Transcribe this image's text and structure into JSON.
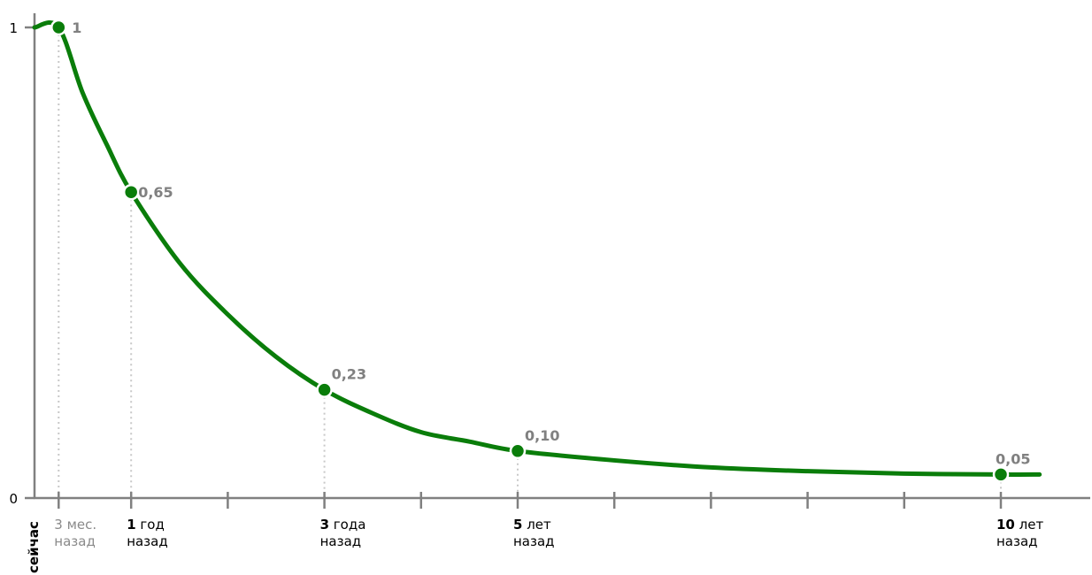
{
  "chart_data": {
    "type": "line",
    "title": "",
    "xlabel": "",
    "ylabel": "",
    "ylim": [
      0,
      1
    ],
    "y_ticks": [
      "0",
      "1"
    ],
    "x_unit": "years ago",
    "x_max": 12.2,
    "x_minor_ticks": [
      0.25,
      1,
      2,
      3,
      4,
      5,
      6,
      7,
      8,
      9,
      10
    ],
    "x_now_label": "сейчас",
    "x_tick_labels": [
      {
        "x": 0.25,
        "num": "",
        "unit": "3 мес.",
        "line2": "назад",
        "muted": true
      },
      {
        "x": 1,
        "num": "1",
        "unit": " год",
        "line2": "назад",
        "muted": false
      },
      {
        "x": 3,
        "num": "3",
        "unit": " года",
        "line2": "назад",
        "muted": false
      },
      {
        "x": 5,
        "num": "5",
        "unit": " лет",
        "line2": "назад",
        "muted": false
      },
      {
        "x": 10,
        "num": "10",
        "unit": " лет",
        "line2": "назад",
        "muted": false
      }
    ],
    "series": [
      {
        "color": "#0a7d0a",
        "points": [
          {
            "x": 0.25,
            "y": 1,
            "label": "1"
          },
          {
            "x": 1,
            "y": 0.65,
            "label": "0,65"
          },
          {
            "x": 3,
            "y": 0.23,
            "label": "0,23"
          },
          {
            "x": 5,
            "y": 0.1,
            "label": "0,10"
          },
          {
            "x": 10,
            "y": 0.05,
            "label": "0,05"
          }
        ],
        "curve": [
          [
            0.0,
            1.0
          ],
          [
            0.25,
            1.0
          ],
          [
            0.5,
            0.86
          ],
          [
            0.75,
            0.75
          ],
          [
            1.0,
            0.65
          ],
          [
            1.5,
            0.5
          ],
          [
            2.0,
            0.39
          ],
          [
            2.5,
            0.3
          ],
          [
            3.0,
            0.23
          ],
          [
            3.5,
            0.18
          ],
          [
            4.0,
            0.14
          ],
          [
            4.5,
            0.12
          ],
          [
            5.0,
            0.1
          ],
          [
            6.0,
            0.08
          ],
          [
            7.0,
            0.065
          ],
          [
            8.0,
            0.057
          ],
          [
            9.0,
            0.052
          ],
          [
            10.0,
            0.05
          ],
          [
            10.4,
            0.05
          ]
        ]
      }
    ]
  }
}
